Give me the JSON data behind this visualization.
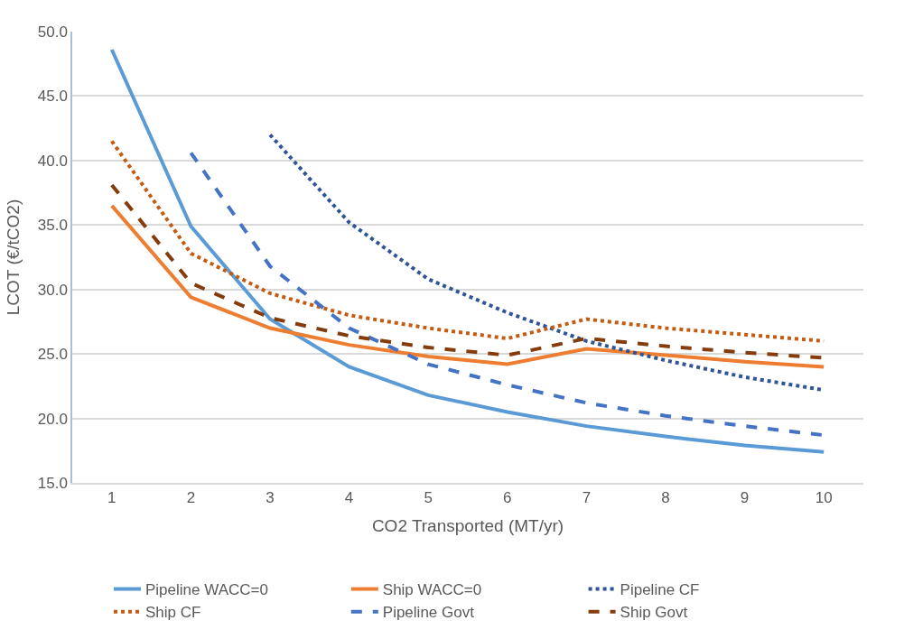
{
  "chart_data": {
    "type": "line",
    "xlabel": "CO2 Transported (MT/yr)",
    "ylabel": "LCOT (€/tCO2)",
    "categories": [
      "1",
      "2",
      "3",
      "4",
      "5",
      "6",
      "7",
      "8",
      "9",
      "10"
    ],
    "series": [
      {
        "name": "Pipeline WACC=0",
        "color": "#5b9bd5",
        "line_style": "solid",
        "values": [
          48.6,
          34.9,
          27.7,
          24.0,
          21.8,
          20.5,
          19.4,
          18.6,
          17.9,
          17.4
        ]
      },
      {
        "name": "Ship WACC=0",
        "color": "#ed7d31",
        "line_style": "solid",
        "values": [
          36.5,
          29.4,
          27.0,
          25.7,
          24.8,
          24.2,
          25.4,
          24.9,
          24.4,
          24.0
        ]
      },
      {
        "name": "Pipeline CF",
        "color": "#2f5597",
        "line_style": "dotted",
        "values": [
          null,
          null,
          42.0,
          35.2,
          30.8,
          28.2,
          26.0,
          24.5,
          23.2,
          22.2
        ]
      },
      {
        "name": "Ship CF",
        "color": "#c55a11",
        "line_style": "dotted",
        "values": [
          41.5,
          32.8,
          29.7,
          28.0,
          27.0,
          26.2,
          27.7,
          27.0,
          26.5,
          26.0
        ]
      },
      {
        "name": "Pipeline Govt",
        "color": "#4472c4",
        "line_style": "dashed",
        "values": [
          null,
          40.6,
          31.8,
          27.0,
          24.2,
          22.6,
          21.2,
          20.2,
          19.4,
          18.7
        ]
      },
      {
        "name": "Ship Govt",
        "color": "#843c0c",
        "line_style": "dashed",
        "values": [
          38.1,
          30.5,
          27.8,
          26.4,
          25.5,
          24.9,
          26.2,
          25.6,
          25.1,
          24.7
        ]
      }
    ],
    "ylim": [
      15,
      50
    ],
    "yticks": [
      {
        "value": 15,
        "label": "15.0"
      },
      {
        "value": 20,
        "label": "20.0"
      },
      {
        "value": 25,
        "label": "25.0"
      },
      {
        "value": 30,
        "label": "30.0"
      },
      {
        "value": 35,
        "label": "35.0"
      },
      {
        "value": 40,
        "label": "40.0"
      },
      {
        "value": 45,
        "label": "45.0"
      },
      {
        "value": 50,
        "label": "50.0"
      }
    ],
    "grid": "y",
    "legend": "bottom"
  }
}
